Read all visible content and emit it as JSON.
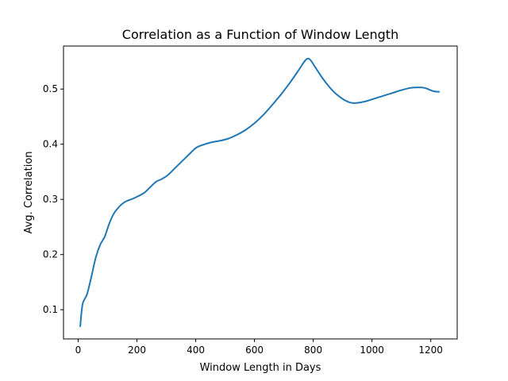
{
  "chart_data": {
    "type": "line",
    "title": "Correlation as a Function of Window Length",
    "xlabel": "Window Length in Days",
    "ylabel": "Avg. Correlation",
    "xlim": [
      -50,
      1290
    ],
    "ylim": [
      0.047,
      0.578
    ],
    "xticks": [
      0,
      200,
      400,
      600,
      800,
      1000,
      1200
    ],
    "yticks": [
      0.1,
      0.2,
      0.3,
      0.4,
      0.5
    ],
    "xtick_labels": [
      "0",
      "200",
      "400",
      "600",
      "800",
      "1000",
      "1200"
    ],
    "ytick_labels": [
      "0.1",
      "0.2",
      "0.3",
      "0.4",
      "0.5"
    ],
    "grid": false,
    "legend": "none",
    "series": [
      {
        "color": "#1f77b4",
        "x": [
          7,
          15,
          30,
          45,
          60,
          75,
          90,
          105,
          120,
          135,
          150,
          165,
          185,
          205,
          225,
          245,
          265,
          285,
          305,
          330,
          355,
          380,
          400,
          420,
          450,
          480,
          510,
          540,
          570,
          600,
          630,
          660,
          690,
          720,
          750,
          770,
          780,
          790,
          810,
          830,
          850,
          870,
          890,
          910,
          930,
          950,
          980,
          1010,
          1040,
          1070,
          1100,
          1130,
          1160,
          1180,
          1195,
          1210,
          1228
        ],
        "y": [
          0.07,
          0.11,
          0.128,
          0.16,
          0.195,
          0.218,
          0.232,
          0.255,
          0.273,
          0.284,
          0.292,
          0.297,
          0.301,
          0.306,
          0.312,
          0.322,
          0.332,
          0.337,
          0.344,
          0.357,
          0.37,
          0.383,
          0.393,
          0.398,
          0.403,
          0.406,
          0.41,
          0.417,
          0.426,
          0.438,
          0.453,
          0.471,
          0.49,
          0.511,
          0.534,
          0.55,
          0.555,
          0.553,
          0.537,
          0.521,
          0.507,
          0.495,
          0.486,
          0.479,
          0.475,
          0.475,
          0.478,
          0.483,
          0.488,
          0.493,
          0.498,
          0.502,
          0.503,
          0.502,
          0.499,
          0.496,
          0.495
        ]
      }
    ]
  }
}
